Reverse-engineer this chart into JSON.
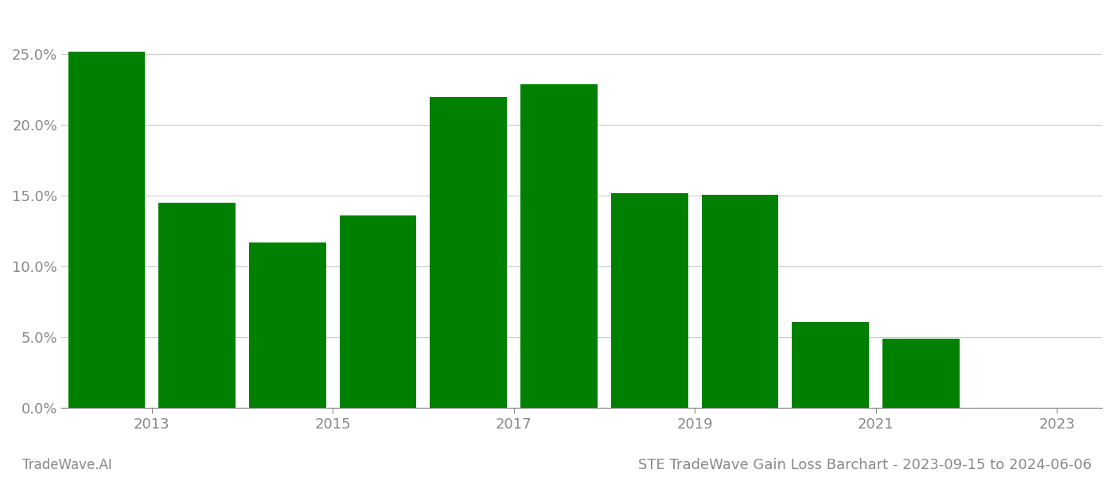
{
  "years": [
    2013,
    2014,
    2015,
    2016,
    2017,
    2018,
    2019,
    2020,
    2021,
    2022,
    2023
  ],
  "values": [
    0.252,
    0.145,
    0.117,
    0.136,
    0.22,
    0.229,
    0.152,
    0.151,
    0.061,
    0.049,
    0.0
  ],
  "bar_color": "#008000",
  "background_color": "#ffffff",
  "title": "STE TradeWave Gain Loss Barchart - 2023-09-15 to 2024-06-06",
  "watermark": "TradeWave.AI",
  "ylim": [
    0,
    0.28
  ],
  "yticks": [
    0.0,
    0.05,
    0.1,
    0.15,
    0.2,
    0.25
  ],
  "grid_color": "#cccccc",
  "bar_width": 0.85,
  "title_fontsize": 13,
  "tick_fontsize": 13,
  "watermark_fontsize": 12,
  "label_color": "#888888",
  "xtick_positions": [
    2013.5,
    2015.5,
    2017.5,
    2019.5,
    2021.5,
    2023.5
  ],
  "xtick_labels": [
    "2013",
    "2015",
    "2017",
    "2019",
    "2021",
    "2023"
  ]
}
